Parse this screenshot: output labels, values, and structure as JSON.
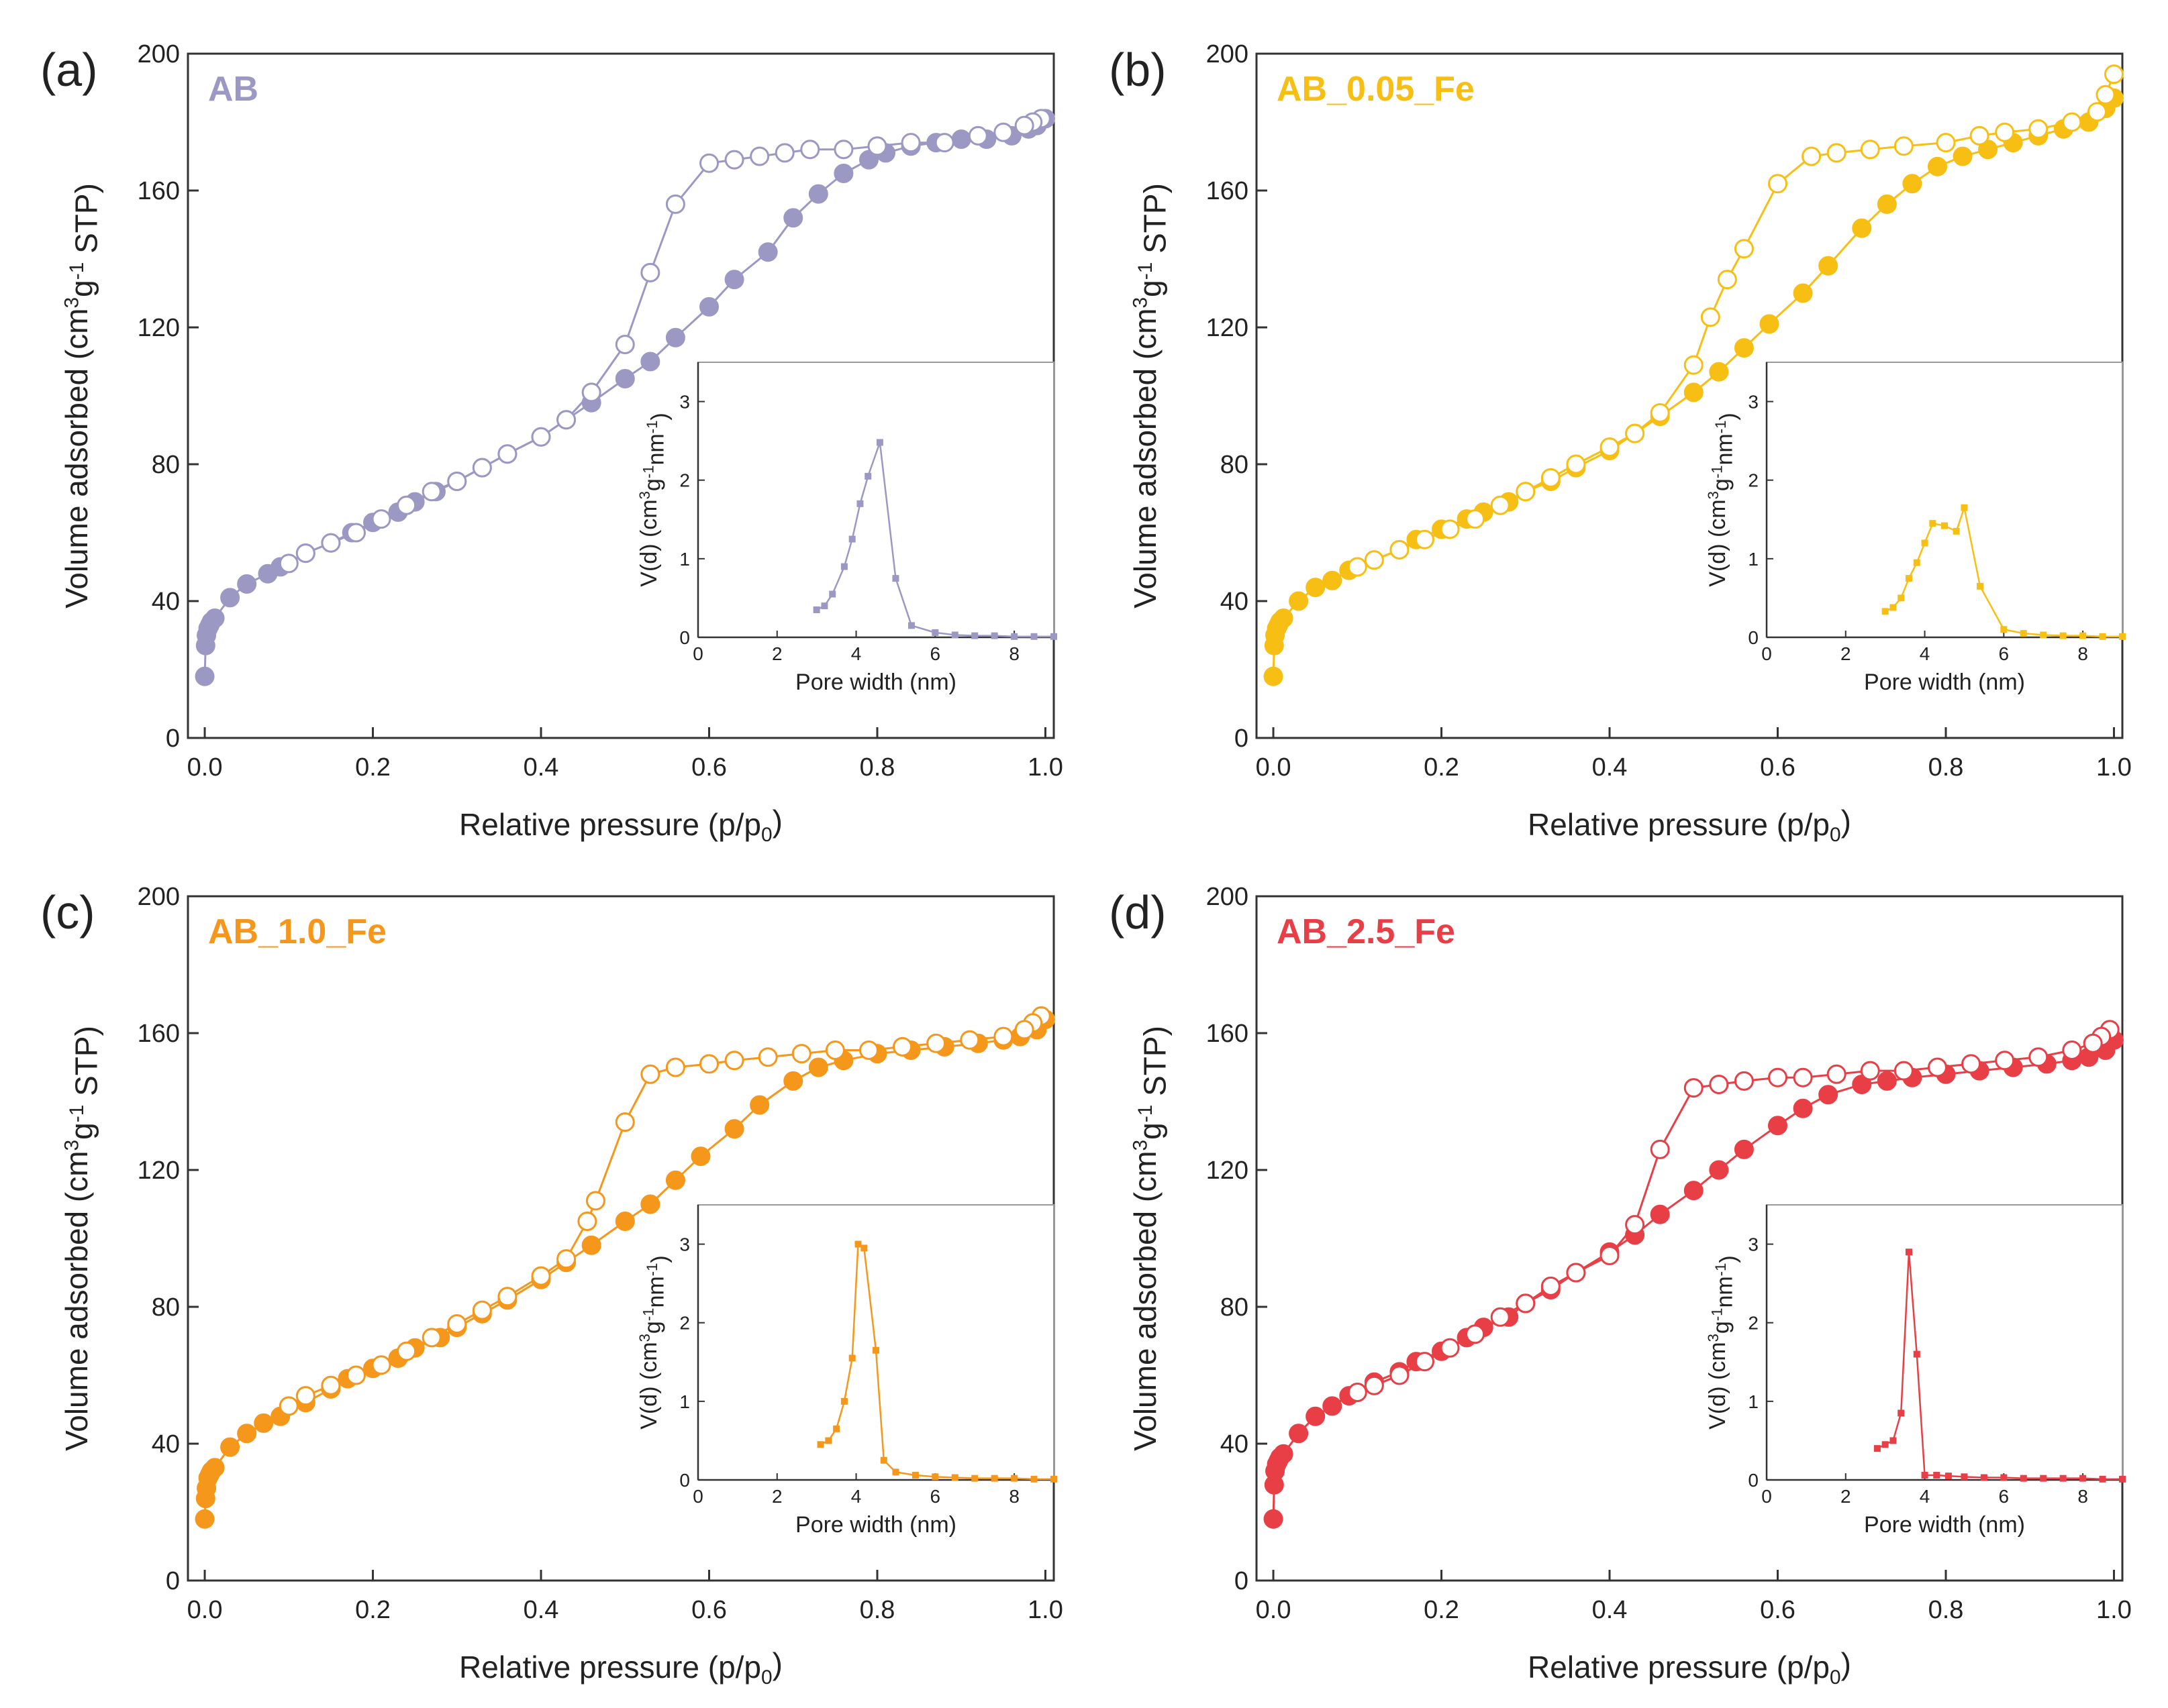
{
  "chart_data": [
    {
      "type": "scatter",
      "panel": "(a)",
      "label": "AB",
      "color": "#9c98c4",
      "xlabel": "Relative pressure (p/p0)",
      "ylabel": "Volume adsorbed (cm3g-1 STP)",
      "xlim": [
        -0.02,
        1.01
      ],
      "ylim": [
        0,
        200
      ],
      "xticks": [
        "0.0",
        "0.2",
        "0.4",
        "0.6",
        "0.8",
        "1.0"
      ],
      "yticks": [
        "0",
        "40",
        "80",
        "120",
        "160",
        "200"
      ],
      "series": [
        {
          "name": "Adsorption",
          "marker": "filled",
          "x": [
            0.0,
            0.001,
            0.002,
            0.004,
            0.006,
            0.008,
            0.012,
            0.03,
            0.05,
            0.075,
            0.09,
            0.12,
            0.15,
            0.175,
            0.2,
            0.23,
            0.25,
            0.275,
            0.3,
            0.33,
            0.36,
            0.4,
            0.43,
            0.46,
            0.5,
            0.53,
            0.56,
            0.6,
            0.63,
            0.67,
            0.7,
            0.73,
            0.76,
            0.79,
            0.81,
            0.84,
            0.87,
            0.9,
            0.93,
            0.96,
            0.98,
            0.99,
            1.0
          ],
          "y": [
            18,
            27,
            30,
            32,
            33,
            34,
            35,
            41,
            45,
            48,
            50,
            54,
            57,
            60,
            63,
            66,
            69,
            72,
            75,
            79,
            83,
            88,
            93,
            98,
            105,
            110,
            117,
            126,
            134,
            142,
            152,
            159,
            165,
            169,
            171,
            173,
            174,
            175,
            175,
            176,
            178,
            179,
            181
          ]
        },
        {
          "name": "Desorption",
          "marker": "open",
          "x": [
            0.995,
            0.985,
            0.975,
            0.95,
            0.92,
            0.88,
            0.84,
            0.8,
            0.76,
            0.72,
            0.69,
            0.66,
            0.63,
            0.6,
            0.56,
            0.53,
            0.5,
            0.46,
            0.43,
            0.4,
            0.36,
            0.33,
            0.3,
            0.27,
            0.24,
            0.21,
            0.18,
            0.15,
            0.12,
            0.1
          ],
          "y": [
            181,
            180,
            179,
            177,
            176,
            174,
            174,
            173,
            172,
            172,
            171,
            170,
            169,
            168,
            156,
            136,
            115,
            101,
            93,
            88,
            83,
            79,
            75,
            72,
            68,
            64,
            60,
            57,
            54,
            51
          ]
        }
      ],
      "inset": {
        "xlabel": "Pore width (nm)",
        "ylabel": "V(d) (cm3g-1nm-1)",
        "xlim": [
          0,
          9
        ],
        "ylim": [
          0,
          3.5
        ],
        "xticks": [
          "0",
          "2",
          "4",
          "6",
          "8"
        ],
        "yticks": [
          "0",
          "1",
          "2",
          "3"
        ],
        "x": [
          3.0,
          3.2,
          3.4,
          3.7,
          3.9,
          4.1,
          4.3,
          4.6,
          5.0,
          5.4,
          6.0,
          6.5,
          7.0,
          7.5,
          8.0,
          8.5,
          9.0
        ],
        "y": [
          0.35,
          0.4,
          0.55,
          0.9,
          1.25,
          1.7,
          2.05,
          2.48,
          0.75,
          0.15,
          0.06,
          0.03,
          0.02,
          0.02,
          0.01,
          0.01,
          0.01
        ]
      }
    },
    {
      "type": "scatter",
      "panel": "(b)",
      "label": "AB_0.05_Fe",
      "color": "#f7bf14",
      "xlabel": "Relative pressure (p/p0)",
      "ylabel": "Volume adsorbed (cm3g-1 STP)",
      "xlim": [
        -0.02,
        1.01
      ],
      "ylim": [
        0,
        200
      ],
      "xticks": [
        "0.0",
        "0.2",
        "0.4",
        "0.6",
        "0.8",
        "1.0"
      ],
      "yticks": [
        "0",
        "40",
        "80",
        "120",
        "160",
        "200"
      ],
      "series": [
        {
          "name": "Adsorption",
          "marker": "filled",
          "x": [
            0.0,
            0.001,
            0.002,
            0.004,
            0.006,
            0.008,
            0.012,
            0.03,
            0.05,
            0.07,
            0.09,
            0.12,
            0.15,
            0.17,
            0.2,
            0.23,
            0.25,
            0.28,
            0.3,
            0.33,
            0.36,
            0.4,
            0.43,
            0.46,
            0.5,
            0.53,
            0.56,
            0.59,
            0.63,
            0.66,
            0.7,
            0.73,
            0.76,
            0.79,
            0.82,
            0.85,
            0.88,
            0.91,
            0.94,
            0.97,
            0.99,
            1.0
          ],
          "y": [
            18,
            27,
            30,
            32,
            33,
            34,
            35,
            40,
            44,
            46,
            49,
            52,
            55,
            58,
            61,
            64,
            66,
            69,
            72,
            75,
            79,
            84,
            89,
            94,
            101,
            107,
            114,
            121,
            130,
            138,
            149,
            156,
            162,
            167,
            170,
            172,
            174,
            176,
            178,
            180,
            184,
            187
          ]
        },
        {
          "name": "Desorption",
          "marker": "open",
          "x": [
            1.0,
            0.99,
            0.98,
            0.95,
            0.91,
            0.87,
            0.84,
            0.8,
            0.75,
            0.71,
            0.67,
            0.64,
            0.6,
            0.56,
            0.54,
            0.52,
            0.5,
            0.46,
            0.43,
            0.4,
            0.36,
            0.33,
            0.3,
            0.27,
            0.24,
            0.21,
            0.18,
            0.15,
            0.12,
            0.1
          ],
          "y": [
            194,
            188,
            183,
            180,
            178,
            177,
            176,
            174,
            173,
            172,
            171,
            170,
            162,
            143,
            134,
            123,
            109,
            95,
            89,
            85,
            80,
            76,
            72,
            68,
            64,
            61,
            58,
            55,
            52,
            50
          ]
        }
      ],
      "inset": {
        "xlabel": "Pore width (nm)",
        "ylabel": "V(d) (cm3g-1nm-1)",
        "xlim": [
          0,
          9
        ],
        "ylim": [
          0,
          3.5
        ],
        "xticks": [
          "0",
          "2",
          "4",
          "6",
          "8"
        ],
        "yticks": [
          "0",
          "1",
          "2",
          "3"
        ],
        "x": [
          3.0,
          3.2,
          3.4,
          3.6,
          3.8,
          4.0,
          4.2,
          4.5,
          4.8,
          5.0,
          5.4,
          6.0,
          6.5,
          7.0,
          7.5,
          8.0,
          8.5,
          9.0
        ],
        "y": [
          0.33,
          0.38,
          0.5,
          0.75,
          0.95,
          1.2,
          1.45,
          1.42,
          1.35,
          1.65,
          0.65,
          0.1,
          0.05,
          0.03,
          0.02,
          0.02,
          0.01,
          0.01
        ]
      }
    },
    {
      "type": "scatter",
      "panel": "(c)",
      "label": "AB_1.0_Fe",
      "color": "#f5971a",
      "xlabel": "Relative pressure (p/p0)",
      "ylabel": "Volume adsorbed (cm3g-1 STP)",
      "xlim": [
        -0.02,
        1.01
      ],
      "ylim": [
        0,
        200
      ],
      "xticks": [
        "0.0",
        "0.2",
        "0.4",
        "0.6",
        "0.8",
        "1.0"
      ],
      "yticks": [
        "0",
        "40",
        "80",
        "120",
        "160",
        "200"
      ],
      "series": [
        {
          "name": "Adsorption",
          "marker": "filled",
          "x": [
            0.0,
            0.001,
            0.002,
            0.004,
            0.006,
            0.008,
            0.012,
            0.03,
            0.05,
            0.07,
            0.09,
            0.12,
            0.15,
            0.17,
            0.2,
            0.23,
            0.25,
            0.28,
            0.3,
            0.33,
            0.36,
            0.4,
            0.43,
            0.46,
            0.5,
            0.53,
            0.56,
            0.59,
            0.63,
            0.66,
            0.7,
            0.73,
            0.76,
            0.8,
            0.84,
            0.88,
            0.92,
            0.95,
            0.97,
            0.99,
            1.0
          ],
          "y": [
            18,
            24,
            27,
            30,
            31,
            32,
            33,
            39,
            43,
            46,
            48,
            52,
            56,
            59,
            62,
            65,
            68,
            71,
            74,
            78,
            82,
            88,
            93,
            98,
            105,
            110,
            117,
            124,
            132,
            139,
            146,
            150,
            152,
            154,
            155,
            156,
            157,
            158,
            159,
            161,
            164
          ]
        },
        {
          "name": "Desorption",
          "marker": "open",
          "x": [
            0.995,
            0.985,
            0.975,
            0.95,
            0.91,
            0.87,
            0.83,
            0.79,
            0.75,
            0.71,
            0.67,
            0.63,
            0.6,
            0.56,
            0.53,
            0.5,
            0.465,
            0.455,
            0.43,
            0.4,
            0.36,
            0.33,
            0.3,
            0.27,
            0.24,
            0.21,
            0.18,
            0.15,
            0.12,
            0.1
          ],
          "y": [
            165,
            163,
            161,
            159,
            158,
            157,
            156,
            155,
            155,
            154,
            153,
            152,
            151,
            150,
            148,
            134,
            111,
            105,
            94,
            89,
            83,
            79,
            75,
            71,
            67,
            63,
            60,
            57,
            54,
            51
          ]
        }
      ],
      "inset": {
        "xlabel": "Pore width (nm)",
        "ylabel": "V(d) (cm3g-1nm-1)",
        "xlim": [
          0,
          9
        ],
        "ylim": [
          0,
          3.5
        ],
        "xticks": [
          "0",
          "2",
          "4",
          "6",
          "8"
        ],
        "yticks": [
          "0",
          "1",
          "2",
          "3"
        ],
        "x": [
          3.1,
          3.3,
          3.5,
          3.7,
          3.9,
          4.05,
          4.2,
          4.5,
          4.7,
          5.0,
          5.5,
          6.0,
          6.5,
          7.0,
          7.5,
          8.0,
          8.5,
          9.0
        ],
        "y": [
          0.45,
          0.5,
          0.65,
          1.0,
          1.55,
          3.0,
          2.95,
          1.65,
          0.25,
          0.1,
          0.06,
          0.04,
          0.03,
          0.02,
          0.02,
          0.02,
          0.01,
          0.01
        ]
      }
    },
    {
      "type": "scatter",
      "panel": "(d)",
      "label": "AB_2.5_Fe",
      "color": "#e83e45",
      "xlabel": "Relative pressure (p/p0)",
      "ylabel": "Volume adsorbed (cm3g-1 STP)",
      "xlim": [
        -0.02,
        1.01
      ],
      "ylim": [
        0,
        200
      ],
      "xticks": [
        "0.0",
        "0.2",
        "0.4",
        "0.6",
        "0.8",
        "1.0"
      ],
      "yticks": [
        "0",
        "40",
        "80",
        "120",
        "160",
        "200"
      ],
      "series": [
        {
          "name": "Adsorption",
          "marker": "filled",
          "x": [
            0.0,
            0.001,
            0.002,
            0.004,
            0.006,
            0.008,
            0.012,
            0.03,
            0.05,
            0.07,
            0.09,
            0.12,
            0.15,
            0.17,
            0.2,
            0.23,
            0.25,
            0.28,
            0.3,
            0.33,
            0.36,
            0.4,
            0.43,
            0.46,
            0.5,
            0.53,
            0.56,
            0.6,
            0.63,
            0.66,
            0.7,
            0.73,
            0.76,
            0.8,
            0.84,
            0.88,
            0.92,
            0.95,
            0.97,
            0.99,
            1.0
          ],
          "y": [
            18,
            28,
            32,
            34,
            35,
            36,
            37,
            43,
            48,
            51,
            54,
            58,
            61,
            64,
            67,
            71,
            74,
            77,
            81,
            85,
            90,
            96,
            101,
            107,
            114,
            120,
            126,
            133,
            138,
            142,
            145,
            146,
            147,
            148,
            149,
            150,
            151,
            152,
            153,
            155,
            158
          ]
        },
        {
          "name": "Desorption",
          "marker": "open",
          "x": [
            0.995,
            0.985,
            0.975,
            0.95,
            0.91,
            0.87,
            0.83,
            0.79,
            0.75,
            0.71,
            0.67,
            0.63,
            0.6,
            0.56,
            0.53,
            0.5,
            0.46,
            0.43,
            0.4,
            0.36,
            0.33,
            0.3,
            0.27,
            0.24,
            0.21,
            0.18,
            0.15,
            0.12,
            0.1
          ],
          "y": [
            161,
            159,
            157,
            155,
            153,
            152,
            151,
            150,
            149,
            149,
            148,
            147,
            147,
            146,
            145,
            144,
            126,
            104,
            95,
            90,
            86,
            81,
            77,
            72,
            68,
            64,
            60,
            57,
            55
          ]
        }
      ],
      "inset": {
        "xlabel": "Pore width (nm)",
        "ylabel": "V(d) (cm3g-1nm-1)",
        "xlim": [
          0,
          9
        ],
        "ylim": [
          0,
          3.5
        ],
        "xticks": [
          "0",
          "2",
          "4",
          "6",
          "8"
        ],
        "yticks": [
          "0",
          "1",
          "2",
          "3"
        ],
        "x": [
          2.8,
          3.0,
          3.2,
          3.4,
          3.6,
          3.8,
          4.0,
          4.3,
          4.6,
          5.0,
          5.5,
          6.0,
          6.5,
          7.0,
          7.5,
          8.0,
          8.5,
          9.0
        ],
        "y": [
          0.4,
          0.45,
          0.5,
          0.85,
          2.9,
          1.6,
          0.06,
          0.06,
          0.05,
          0.04,
          0.03,
          0.03,
          0.02,
          0.02,
          0.02,
          0.02,
          0.01,
          0.01
        ]
      }
    }
  ]
}
